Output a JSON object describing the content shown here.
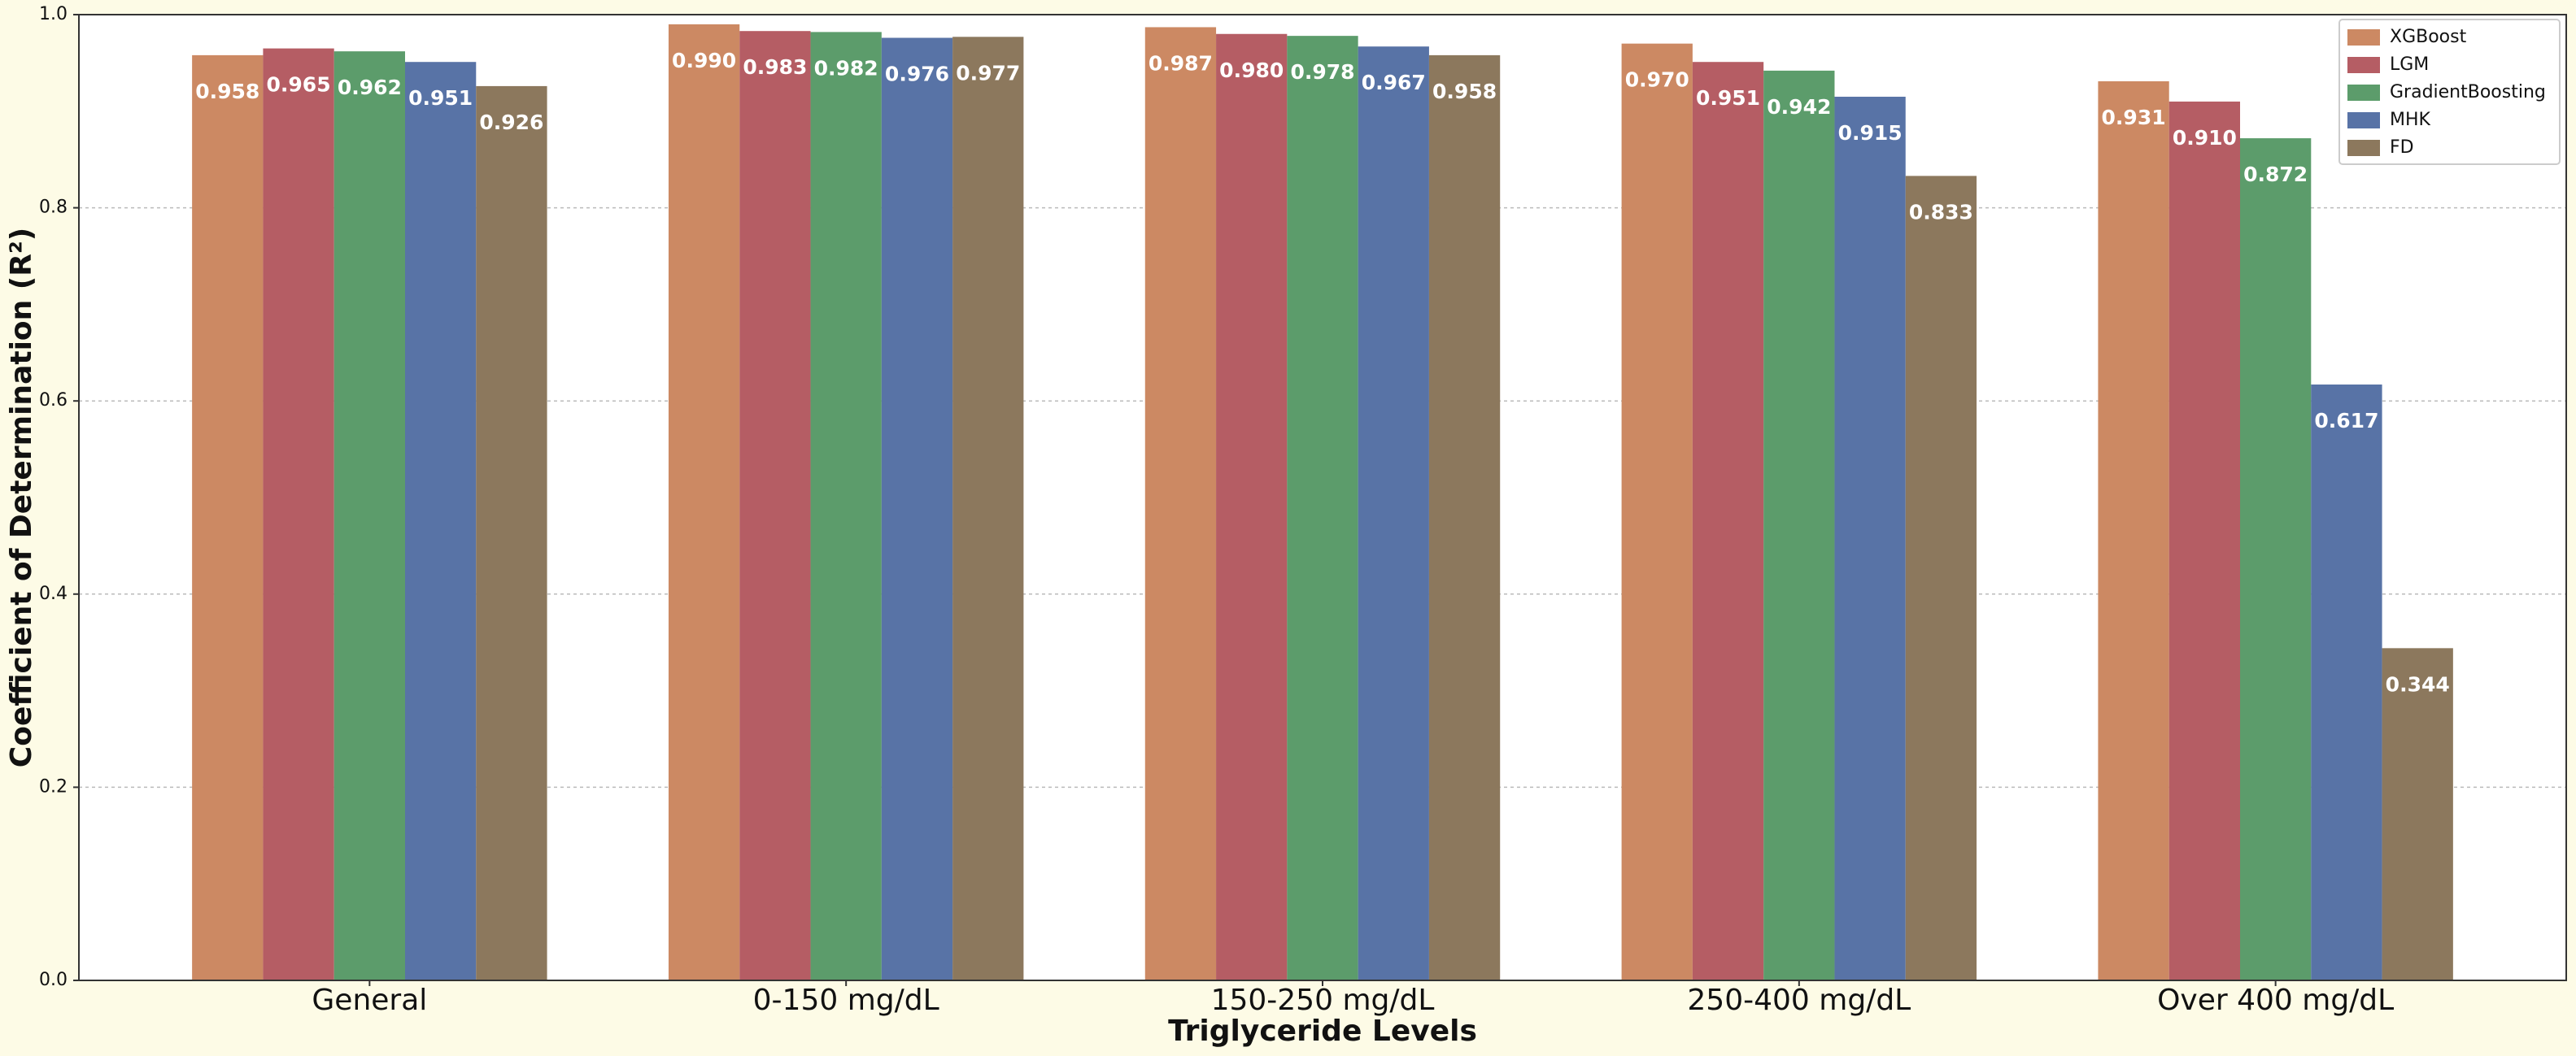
{
  "chart_data": {
    "type": "bar",
    "xlabel": "Triglyceride Levels",
    "ylabel": "Coefficient of Determination (R²)",
    "categories": [
      "General",
      "0-150 mg/dL",
      "150-250 mg/dL",
      "250-400 mg/dL",
      "Over 400 mg/dL"
    ],
    "series": [
      {
        "name": "XGBoost",
        "color": "#cc8963",
        "values": [
          0.958,
          0.99,
          0.987,
          0.97,
          0.931
        ],
        "value_labels": [
          "0.958",
          "0.990",
          "0.987",
          "0.970",
          "0.931"
        ]
      },
      {
        "name": "LGM",
        "color": "#b55d64",
        "values": [
          0.965,
          0.983,
          0.98,
          0.951,
          0.91
        ],
        "value_labels": [
          "0.965",
          "0.983",
          "0.980",
          "0.951",
          "0.910"
        ]
      },
      {
        "name": "GradientBoosting",
        "color": "#5c9c6b",
        "values": [
          0.962,
          0.982,
          0.978,
          0.942,
          0.872
        ],
        "value_labels": [
          "0.962",
          "0.982",
          "0.978",
          "0.942",
          "0.872"
        ]
      },
      {
        "name": "MHK",
        "color": "#5873a6",
        "values": [
          0.951,
          0.976,
          0.967,
          0.915,
          0.617
        ],
        "value_labels": [
          "0.951",
          "0.976",
          "0.967",
          "0.915",
          "0.617"
        ]
      },
      {
        "name": "FD",
        "color": "#8c785d",
        "values": [
          0.926,
          0.977,
          0.958,
          0.833,
          0.344
        ],
        "value_labels": [
          "0.926",
          "0.977",
          "0.958",
          "0.833",
          "0.344"
        ]
      }
    ],
    "ylim": [
      0,
      1
    ],
    "yticks": [
      {
        "value": 0,
        "label": "0.0"
      },
      0.2,
      0.4,
      0.6,
      0.8,
      {
        "value": 1,
        "label": "1.0"
      }
    ],
    "grid": true,
    "legend": "upper right"
  }
}
